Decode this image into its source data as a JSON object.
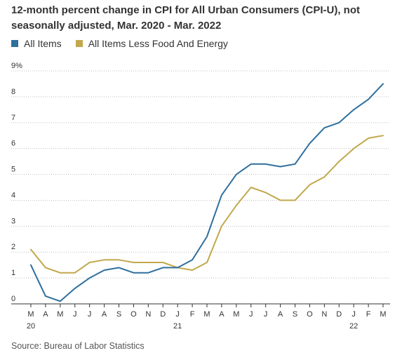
{
  "title": "12-month percent change in CPI for All Urban Consumers (CPI-U), not seasonally adjusted, Mar. 2020 - Mar. 2022",
  "source": "Source: Bureau of Labor Statistics",
  "colors": {
    "all_items": "#2e6f9e",
    "core": "#c1a84c",
    "grid": "#bdbdbd",
    "axis": "#333333",
    "text": "#333333"
  },
  "chart_data": {
    "type": "line",
    "title": "12-month percent change in CPI for All Urban Consumers (CPI-U), not seasonally adjusted, Mar. 2020 - Mar. 2022",
    "xlabel": "",
    "ylabel": "",
    "ylim": [
      0,
      9
    ],
    "yticks": [
      "0",
      "1",
      "2",
      "3",
      "4",
      "5",
      "6",
      "7",
      "8",
      "9%"
    ],
    "grid": true,
    "legend": "top-left",
    "categories": [
      "M",
      "A",
      "M",
      "J",
      "J",
      "A",
      "S",
      "O",
      "N",
      "D",
      "J",
      "F",
      "M",
      "A",
      "M",
      "J",
      "J",
      "A",
      "S",
      "O",
      "N",
      "D",
      "J",
      "F",
      "M"
    ],
    "year_labels": [
      {
        "index": 0,
        "label": "20"
      },
      {
        "index": 10,
        "label": "21"
      },
      {
        "index": 22,
        "label": "22"
      }
    ],
    "series": [
      {
        "name": "All Items",
        "color": "#2e6f9e",
        "values": [
          1.5,
          0.3,
          0.1,
          0.6,
          1.0,
          1.3,
          1.4,
          1.2,
          1.2,
          1.4,
          1.4,
          1.7,
          2.6,
          4.2,
          5.0,
          5.4,
          5.4,
          5.3,
          5.4,
          6.2,
          6.8,
          7.0,
          7.5,
          7.9,
          8.5
        ]
      },
      {
        "name": "All Items Less Food And Energy",
        "color": "#c1a84c",
        "values": [
          2.1,
          1.4,
          1.2,
          1.2,
          1.6,
          1.7,
          1.7,
          1.6,
          1.6,
          1.6,
          1.4,
          1.3,
          1.6,
          3.0,
          3.8,
          4.5,
          4.3,
          4.0,
          4.0,
          4.6,
          4.9,
          5.5,
          6.0,
          6.4,
          6.5
        ]
      }
    ]
  }
}
